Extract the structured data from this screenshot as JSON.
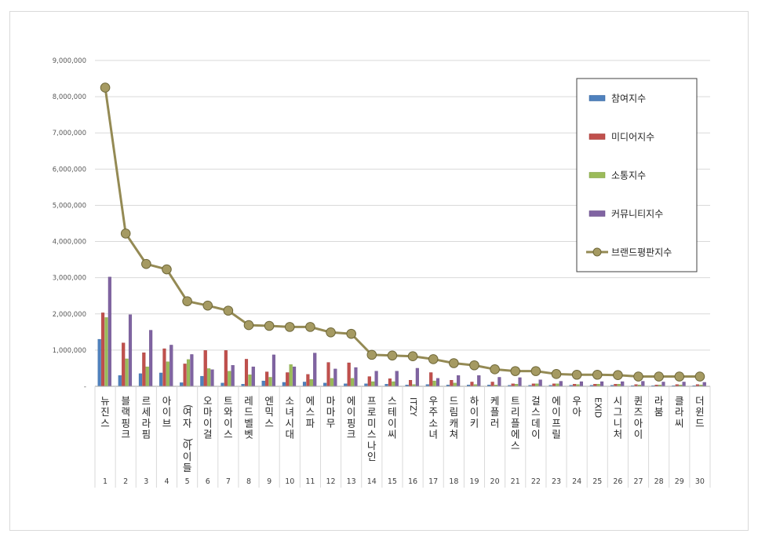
{
  "chart_data": {
    "type": "bar",
    "title": "",
    "xlabel": "",
    "ylabel": "",
    "ylim": [
      0,
      9000000
    ],
    "yticks": [
      0,
      1000000,
      2000000,
      3000000,
      4000000,
      5000000,
      6000000,
      7000000,
      8000000,
      9000000
    ],
    "ytick_labels": [
      "-",
      "1,000,000",
      "2,000,000",
      "3,000,000",
      "4,000,000",
      "5,000,000",
      "6,000,000",
      "7,000,000",
      "8,000,000",
      "9,000,000"
    ],
    "grid": true,
    "legend_position": "top-right",
    "categories": [
      "뉴진스",
      "블랙핑크",
      "르세라핌",
      "아이브",
      "(여자)아이들",
      "오마이걸",
      "트와이스",
      "레드벨벳",
      "엔믹스",
      "소녀시대",
      "에스파",
      "마마무",
      "에이핑크",
      "프로미스나인",
      "스테이씨",
      "ITZY",
      "우주소녀",
      "드림캐쳐",
      "하이키",
      "케플러",
      "트리플에스",
      "걸스데이",
      "에이프릴",
      "우아",
      "EXID",
      "시그니처",
      "퀸즈아이",
      "라붐",
      "클라씨",
      "더윈드"
    ],
    "ranks": [
      "1",
      "2",
      "3",
      "4",
      "5",
      "6",
      "7",
      "8",
      "9",
      "10",
      "11",
      "12",
      "13",
      "14",
      "15",
      "16",
      "17",
      "18",
      "19",
      "20",
      "21",
      "22",
      "23",
      "24",
      "25",
      "26",
      "27",
      "28",
      "29",
      "30"
    ],
    "series": [
      {
        "name": "참여지수",
        "kind": "bar",
        "color": "#4f81bd",
        "values": [
          1300000,
          300000,
          350000,
          370000,
          100000,
          280000,
          90000,
          60000,
          150000,
          110000,
          120000,
          90000,
          70000,
          70000,
          60000,
          40000,
          50000,
          40000,
          40000,
          40000,
          30000,
          30000,
          30000,
          30000,
          30000,
          30000,
          20000,
          20000,
          20000,
          20000
        ]
      },
      {
        "name": "미디어지수",
        "kind": "bar",
        "color": "#c0504d",
        "values": [
          2030000,
          1200000,
          930000,
          1040000,
          620000,
          990000,
          990000,
          750000,
          400000,
          380000,
          330000,
          660000,
          650000,
          270000,
          210000,
          170000,
          380000,
          170000,
          120000,
          120000,
          70000,
          70000,
          70000,
          60000,
          60000,
          60000,
          50000,
          40000,
          50000,
          50000
        ]
      },
      {
        "name": "소통지수",
        "kind": "bar",
        "color": "#9bbb59",
        "values": [
          1900000,
          760000,
          540000,
          680000,
          740000,
          490000,
          420000,
          320000,
          250000,
          600000,
          190000,
          220000,
          220000,
          130000,
          130000,
          50000,
          150000,
          90000,
          50000,
          40000,
          60000,
          70000,
          70000,
          50000,
          60000,
          60000,
          40000,
          40000,
          40000,
          40000
        ]
      },
      {
        "name": "커뮤니티지수",
        "kind": "bar",
        "color": "#8064a2",
        "values": [
          3020000,
          1980000,
          1550000,
          1140000,
          880000,
          460000,
          580000,
          540000,
          870000,
          540000,
          920000,
          480000,
          520000,
          420000,
          420000,
          500000,
          220000,
          300000,
          300000,
          250000,
          240000,
          180000,
          140000,
          130000,
          130000,
          130000,
          140000,
          120000,
          120000,
          110000
        ]
      },
      {
        "name": "브랜드평판지수",
        "kind": "line",
        "color": "#948a54",
        "values": [
          8250000,
          4220000,
          3380000,
          3230000,
          2350000,
          2230000,
          2090000,
          1690000,
          1670000,
          1640000,
          1640000,
          1490000,
          1450000,
          870000,
          850000,
          830000,
          750000,
          640000,
          580000,
          470000,
          420000,
          420000,
          340000,
          320000,
          320000,
          310000,
          270000,
          270000,
          270000,
          270000
        ]
      }
    ]
  }
}
